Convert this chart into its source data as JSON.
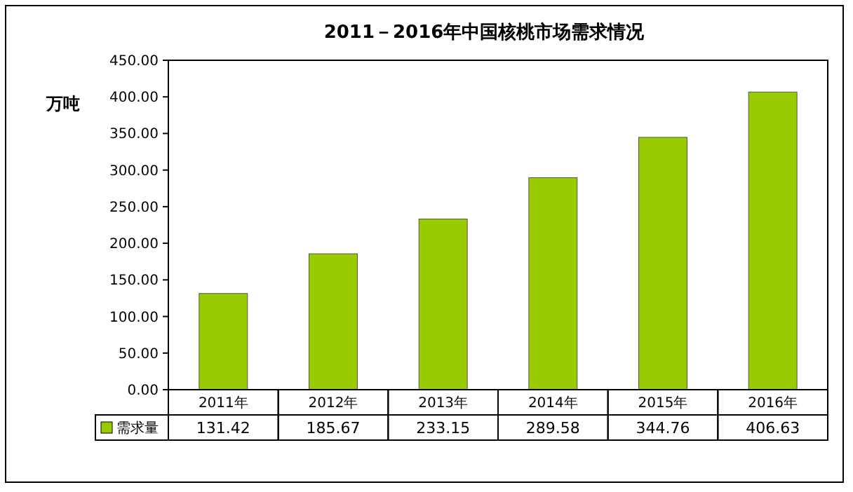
{
  "chart_data": {
    "type": "bar",
    "title": "2011－2016年中国核桃市场需求情况",
    "ylabel": "万吨",
    "categories": [
      "2011年",
      "2012年",
      "2013年",
      "2014年",
      "2015年",
      "2016年"
    ],
    "series": [
      {
        "name": "需求量",
        "color": "#99cc00",
        "values": [
          131.42,
          185.67,
          233.15,
          289.58,
          344.76,
          406.63
        ]
      }
    ],
    "ylim": [
      0,
      450
    ],
    "yticks": [
      {
        "value": 0,
        "label": "0.00"
      },
      {
        "value": 50,
        "label": "50.00"
      },
      {
        "value": 100,
        "label": "100.00"
      },
      {
        "value": 150,
        "label": "150.00"
      },
      {
        "value": 200,
        "label": "200.00"
      },
      {
        "value": 250,
        "label": "250.00"
      },
      {
        "value": 300,
        "label": "300.00"
      },
      {
        "value": 350,
        "label": "350.00"
      },
      {
        "value": 400,
        "label": "400.00"
      },
      {
        "value": 450,
        "label": "450.00"
      }
    ],
    "data_labels": true,
    "legend": "bottom",
    "grid": false
  }
}
